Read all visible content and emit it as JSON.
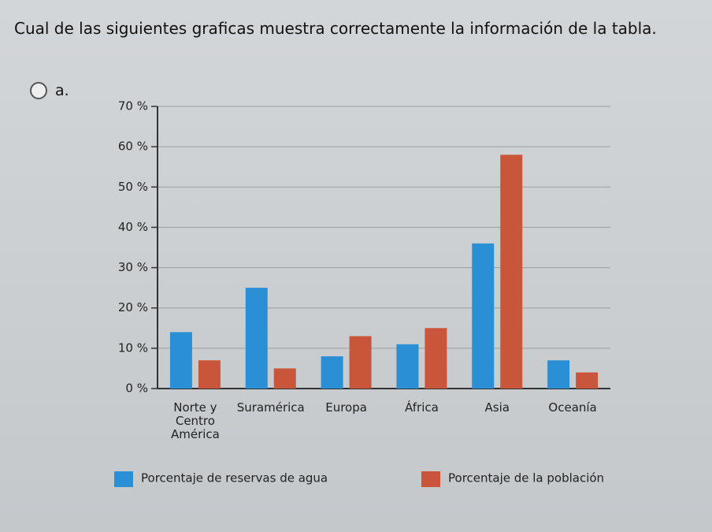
{
  "question": "Cual de las siguientes graficas muestra correctamente la información de la tabla.",
  "option_label": "a.",
  "chart_data": {
    "type": "bar",
    "categories": [
      "Norte y Centro América",
      "Suramérica",
      "Europa",
      "África",
      "Asia",
      "Oceanía"
    ],
    "series": [
      {
        "name": "Porcentaje de reservas de agua",
        "color": "#2b8fd6",
        "values": [
          14,
          25,
          8,
          11,
          36,
          7
        ]
      },
      {
        "name": "Porcentaje de la población",
        "color": "#c9553a",
        "values": [
          7,
          5,
          13,
          15,
          58,
          4
        ]
      }
    ],
    "ylim": [
      0,
      70
    ],
    "yticks": [
      {
        "value": 0,
        "label": "0 %"
      },
      {
        "value": 10,
        "label": "10 %"
      },
      {
        "value": 20,
        "label": "20 %"
      },
      {
        "value": 30,
        "label": "30 %"
      },
      {
        "value": 40,
        "label": "40 %"
      },
      {
        "value": 50,
        "label": "50 %"
      },
      {
        "value": 60,
        "label": "60 %"
      },
      {
        "value": 70,
        "label": "70 %"
      }
    ],
    "grid": true
  }
}
